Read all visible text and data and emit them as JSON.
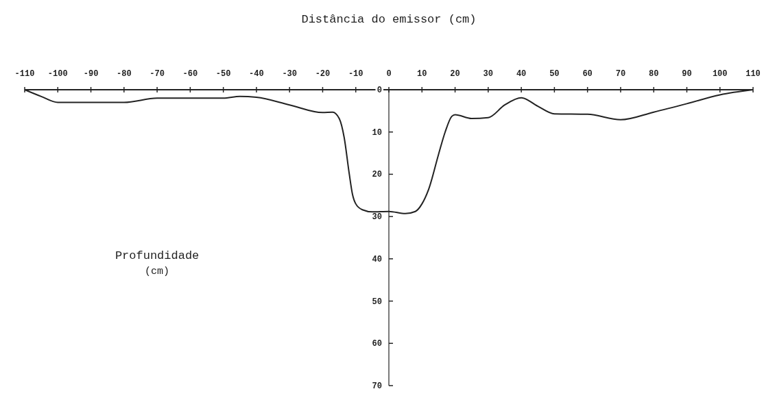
{
  "chart_data": {
    "type": "line",
    "xlabel": "Distância do emissor (cm)",
    "ylabel": "Profundidade (cm)",
    "x": [
      -110,
      -105,
      -100,
      -90,
      -80,
      -70,
      -60,
      -50,
      -45,
      -40,
      -30,
      -20,
      -17,
      -15,
      -13.5,
      -12,
      -11,
      -10,
      -8,
      -5,
      0,
      5,
      8,
      10,
      12,
      15,
      17,
      19,
      20,
      25,
      30,
      35,
      40,
      45,
      50,
      60,
      70,
      80,
      90,
      100,
      110
    ],
    "series": [
      {
        "color": "#222222",
        "values": [
          0,
          1.6,
          3,
          3,
          3,
          2,
          2,
          2,
          1.6,
          1.8,
          3.6,
          5.4,
          5.3,
          6.8,
          11.3,
          19.7,
          24.7,
          27,
          28.4,
          28.9,
          28.8,
          29.3,
          28.8,
          27,
          23.6,
          15.3,
          10,
          6.3,
          5.9,
          6.8,
          6.6,
          3.6,
          1.9,
          3.9,
          5.7,
          5.8,
          7.1,
          5.3,
          3.3,
          1.2,
          0
        ]
      }
    ],
    "xlim": [
      -110,
      110
    ],
    "xticks": [
      -110,
      -100,
      -90,
      -80,
      -70,
      -60,
      -50,
      -40,
      -30,
      -20,
      -10,
      0,
      10,
      20,
      30,
      40,
      50,
      60,
      70,
      80,
      90,
      100,
      110
    ],
    "ylim": [
      70,
      0
    ],
    "yticks": [
      0,
      10,
      20,
      30,
      40,
      50,
      60,
      70
    ],
    "grid": false,
    "marker": "none",
    "line_style": "solid"
  }
}
